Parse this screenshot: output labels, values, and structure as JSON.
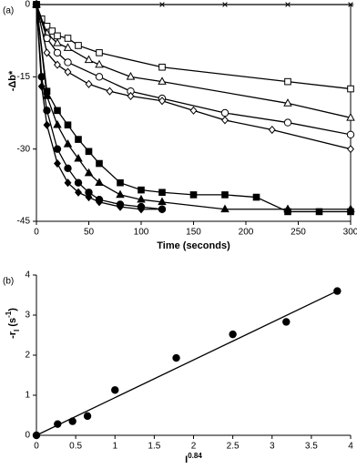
{
  "chart_data": [
    {
      "type": "line",
      "label": "(a)",
      "ylabel": [
        "-Δb*"
      ],
      "xlabel": "Time (seconds)",
      "xlim": [
        0,
        300
      ],
      "xticks": [
        0,
        50,
        100,
        150,
        200,
        250,
        300
      ],
      "ylim": [
        -45,
        0
      ],
      "yticks": [
        0,
        -15,
        -30,
        -45
      ],
      "frame": true,
      "series": [
        {
          "marker": "asterisk",
          "color": "#000000",
          "line": true,
          "x": [
            0,
            120,
            180,
            240,
            300
          ],
          "values": [
            0,
            0,
            0,
            0,
            0
          ]
        },
        {
          "marker": "square-open",
          "color": "#000000",
          "line": true,
          "x": [
            0,
            5,
            10,
            15,
            20,
            30,
            40,
            60,
            120,
            240,
            300
          ],
          "values": [
            0,
            -3,
            -4.5,
            -5.5,
            -6.5,
            -7,
            -8.5,
            -10,
            -13,
            -16,
            -17.5
          ]
        },
        {
          "marker": "triangle-open",
          "color": "#000000",
          "line": true,
          "x": [
            0,
            10,
            20,
            30,
            50,
            60,
            90,
            120,
            240,
            300
          ],
          "values": [
            0,
            -6,
            -8,
            -9,
            -11.5,
            -12.5,
            -15,
            -16,
            -20.5,
            -23.5
          ]
        },
        {
          "marker": "circle-open",
          "color": "#000000",
          "line": true,
          "x": [
            0,
            10,
            20,
            30,
            60,
            90,
            120,
            180,
            240,
            300
          ],
          "values": [
            0,
            -7,
            -10,
            -12,
            -15,
            -18,
            -19.5,
            -22.5,
            -24.5,
            -27
          ]
        },
        {
          "marker": "diamond-open",
          "color": "#000000",
          "line": true,
          "x": [
            0,
            10,
            20,
            30,
            50,
            70,
            90,
            120,
            150,
            180,
            225,
            300
          ],
          "values": [
            0,
            -10,
            -12.5,
            -14,
            -16.5,
            -18,
            -19,
            -20,
            -22,
            -24,
            -26,
            -30
          ]
        },
        {
          "marker": "square",
          "color": "#000000",
          "line": true,
          "x": [
            0,
            10,
            20,
            30,
            40,
            50,
            60,
            80,
            100,
            120,
            150,
            180,
            210,
            240,
            270,
            300
          ],
          "values": [
            0,
            -18,
            -22,
            -25,
            -28,
            -30.5,
            -33,
            -37,
            -38.5,
            -39,
            -39.5,
            -39.5,
            -40,
            -43,
            -43,
            -43
          ]
        },
        {
          "marker": "triangle",
          "color": "#000000",
          "line": true,
          "x": [
            0,
            10,
            20,
            30,
            40,
            50,
            60,
            80,
            100,
            120,
            180,
            240,
            300
          ],
          "values": [
            0,
            -19,
            -25,
            -29,
            -32,
            -35,
            -37,
            -39.5,
            -40.5,
            -41,
            -42.5,
            -42.5,
            -42.5
          ]
        },
        {
          "marker": "circle",
          "color": "#000000",
          "line": true,
          "x": [
            0,
            5,
            10,
            20,
            30,
            40,
            50,
            60,
            80,
            100,
            120
          ],
          "values": [
            0,
            -15,
            -22,
            -30,
            -34,
            -37,
            -39,
            -40.5,
            -41.5,
            -42,
            -42.5
          ]
        },
        {
          "marker": "diamond",
          "color": "#000000",
          "line": true,
          "x": [
            0,
            5,
            10,
            20,
            30,
            40,
            50,
            60,
            80,
            100,
            120
          ],
          "values": [
            0,
            -17,
            -25,
            -33,
            -37,
            -39,
            -40,
            -41,
            -42,
            -42.5,
            -42.5
          ]
        }
      ]
    },
    {
      "type": "scatter",
      "label": "(b)",
      "ylabel": [
        "-r",
        "I",
        " (s",
        "-1",
        ")"
      ],
      "xlabel": [
        "I",
        "0.84"
      ],
      "xlim": [
        0,
        4
      ],
      "xticks": [
        0,
        0.5,
        1,
        1.5,
        2,
        2.5,
        3,
        3.5,
        4
      ],
      "ylim": [
        0,
        4
      ],
      "yticks": [
        0,
        1,
        2,
        3,
        4
      ],
      "frame": false,
      "series": [
        {
          "marker": "circle",
          "color": "#000000",
          "line": false,
          "x": [
            0,
            0.27,
            0.46,
            0.65,
            1.0,
            1.78,
            2.5,
            3.18,
            3.83
          ],
          "values": [
            0,
            0.28,
            0.35,
            0.48,
            1.13,
            1.93,
            2.52,
            2.83,
            3.6
          ]
        },
        {
          "marker": "none",
          "color": "#000000",
          "line": true,
          "x": [
            0,
            3.85
          ],
          "values": [
            0,
            3.62
          ]
        }
      ]
    }
  ]
}
